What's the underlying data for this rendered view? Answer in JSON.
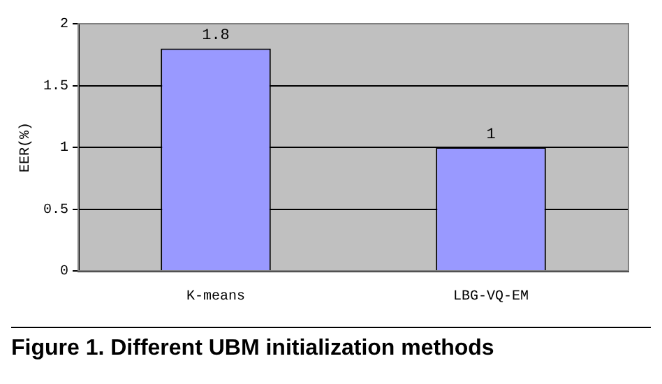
{
  "chart_data": {
    "type": "bar",
    "ylabel": "EER(%)",
    "categories": [
      "K-means",
      "LBG-VQ-EM"
    ],
    "values": [
      1.8,
      1
    ],
    "color": "#9999ff",
    "ylim": [
      0,
      2
    ],
    "yticks": [
      0,
      0.5,
      1,
      1.5,
      2
    ],
    "grid": "y",
    "data_labels": true,
    "legend": false,
    "annotations": [
      "Figure 1. Different UBM initialization methods"
    ]
  }
}
